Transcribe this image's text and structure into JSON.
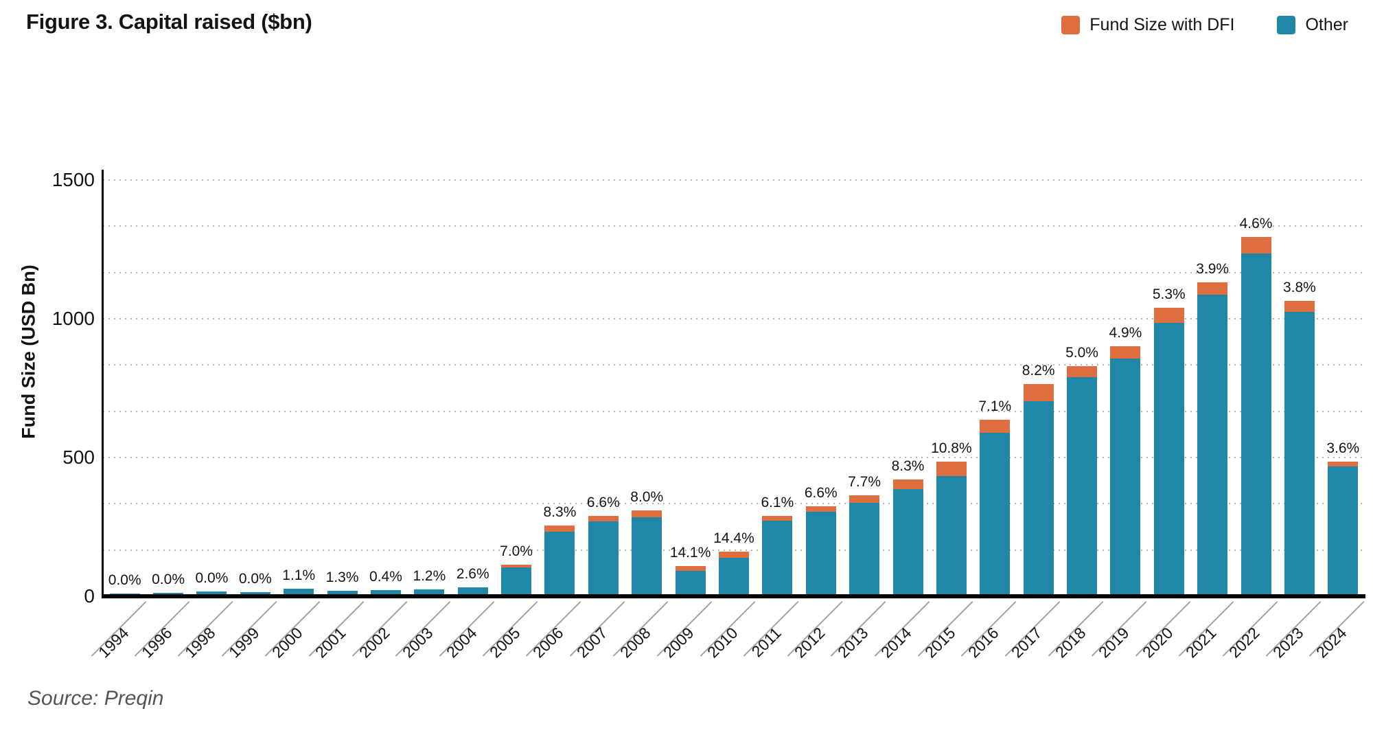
{
  "title": "Figure 3. Capital raised ($bn)",
  "source": "Source: Preqin",
  "legend": {
    "items": [
      {
        "label": "Fund Size with DFI",
        "color": "#de6e3f"
      },
      {
        "label": "Other",
        "color": "#2187a8"
      }
    ]
  },
  "y_axis": {
    "label": "Fund Size (USD Bn)",
    "ticks": [
      "0",
      "500",
      "1000",
      "1500"
    ]
  },
  "chart_data": {
    "type": "bar",
    "stacked": true,
    "title": "Figure 3. Capital raised ($bn)",
    "xlabel": "",
    "ylabel": "Fund Size (USD Bn)",
    "ylim": [
      0,
      1500
    ],
    "grid": "dotted horizontal, minor lines at thirds of 500",
    "legend_position": "top-right",
    "categories": [
      "1994",
      "1996",
      "1998",
      "1999",
      "2000",
      "2001",
      "2002",
      "2003",
      "2004",
      "2005",
      "2006",
      "2007",
      "2008",
      "2009",
      "2010",
      "2011",
      "2012",
      "2013",
      "2014",
      "2015",
      "2016",
      "2017",
      "2018",
      "2019",
      "2020",
      "2021",
      "2022",
      "2023",
      "2024"
    ],
    "totals": [
      10,
      12,
      17,
      16,
      28,
      20,
      22,
      25,
      33,
      113,
      255,
      290,
      310,
      108,
      162,
      290,
      325,
      365,
      420,
      485,
      635,
      765,
      830,
      900,
      1040,
      1130,
      1295,
      1065,
      485
    ],
    "pct_labels": [
      "0.0%",
      "0.0%",
      "0.0%",
      "0.0%",
      "1.1%",
      "1.3%",
      "0.4%",
      "1.2%",
      "2.6%",
      "7.0%",
      "8.3%",
      "6.6%",
      "8.0%",
      "14.1%",
      "14.4%",
      "6.1%",
      "6.6%",
      "7.7%",
      "8.3%",
      "10.8%",
      "7.1%",
      "8.2%",
      "5.0%",
      "4.9%",
      "5.3%",
      "3.9%",
      "4.6%",
      "3.8%",
      "3.6%"
    ],
    "series": [
      {
        "name": "Other",
        "color": "#2187a8",
        "values": [
          10,
          12,
          17,
          16,
          27.7,
          19.7,
          21.9,
          24.7,
          32.1,
          105.1,
          233.8,
          270.9,
          285.2,
          92.8,
          138.7,
          272.3,
          303.5,
          336.9,
          385.1,
          432.6,
          589.9,
          702.3,
          788.5,
          855.9,
          984.9,
          1085.9,
          1235.4,
          1024.5,
          467.5
        ]
      },
      {
        "name": "Fund Size with DFI",
        "color": "#de6e3f",
        "values": [
          0,
          0,
          0,
          0,
          0.3,
          0.3,
          0.1,
          0.3,
          0.9,
          7.9,
          21.2,
          19.1,
          24.8,
          15.2,
          23.3,
          17.7,
          21.5,
          28.1,
          34.9,
          52.4,
          45.1,
          62.7,
          41.5,
          44.1,
          55.1,
          44.1,
          59.6,
          40.5,
          17.5
        ]
      }
    ]
  }
}
